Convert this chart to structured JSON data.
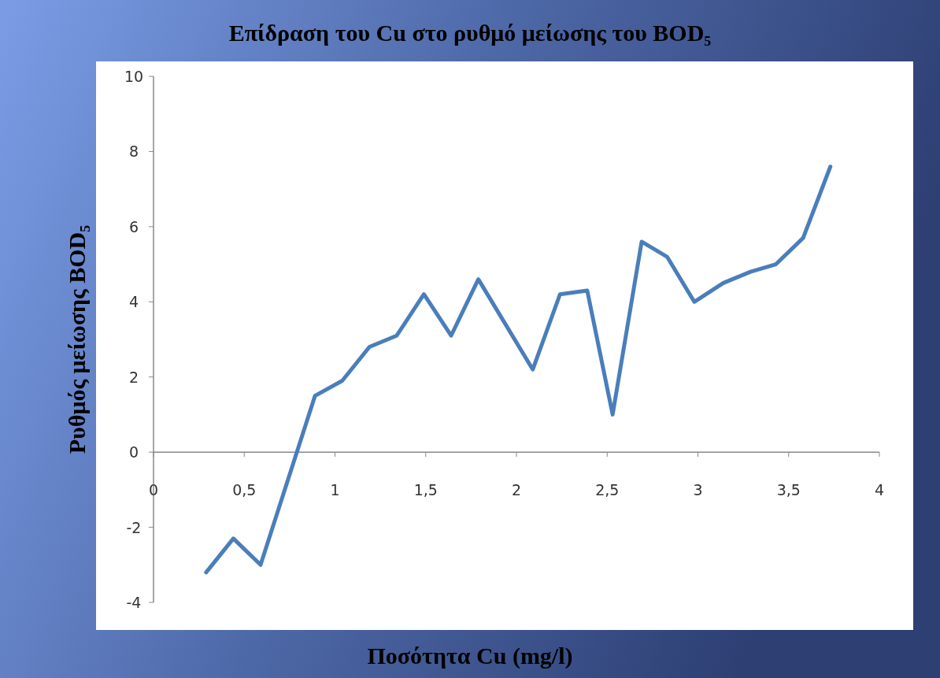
{
  "chart_data": {
    "type": "line",
    "title": "Επίδραση του Cu στο ρυθμό μείωσης του BOD₅",
    "xlabel": "Ποσότητα Cu (mg/l)",
    "ylabel": "Ρυθμός μείωσης BOD₅",
    "x": [
      0.29,
      0.44,
      0.59,
      0.89,
      1.04,
      1.19,
      1.34,
      1.49,
      1.64,
      1.79,
      2.09,
      2.24,
      2.39,
      2.53,
      2.69,
      2.83,
      2.98,
      3.14,
      3.29,
      3.43,
      3.58,
      3.73
    ],
    "series": [
      {
        "color": "#4a7ebb",
        "values": [
          -3.2,
          -2.3,
          -3.0,
          1.5,
          1.9,
          2.8,
          3.1,
          4.2,
          3.1,
          4.6,
          2.2,
          4.2,
          4.3,
          1.0,
          5.6,
          5.2,
          4.0,
          4.5,
          4.8,
          5.0,
          5.7,
          7.6
        ]
      }
    ],
    "xlim": [
      0,
      4
    ],
    "xticks": [
      0,
      {
        "value": 0.5,
        "label": "0,5"
      },
      1,
      {
        "value": 1.5,
        "label": "1,5"
      },
      2,
      {
        "value": 2.5,
        "label": "2,5"
      },
      3,
      {
        "value": 3.5,
        "label": "3,5"
      },
      4
    ],
    "ylim": [
      -4,
      10
    ],
    "yticks": [
      -4,
      -2,
      0,
      2,
      4,
      6,
      8,
      10
    ],
    "grid": false,
    "marker": "none",
    "line_style": "solid"
  }
}
